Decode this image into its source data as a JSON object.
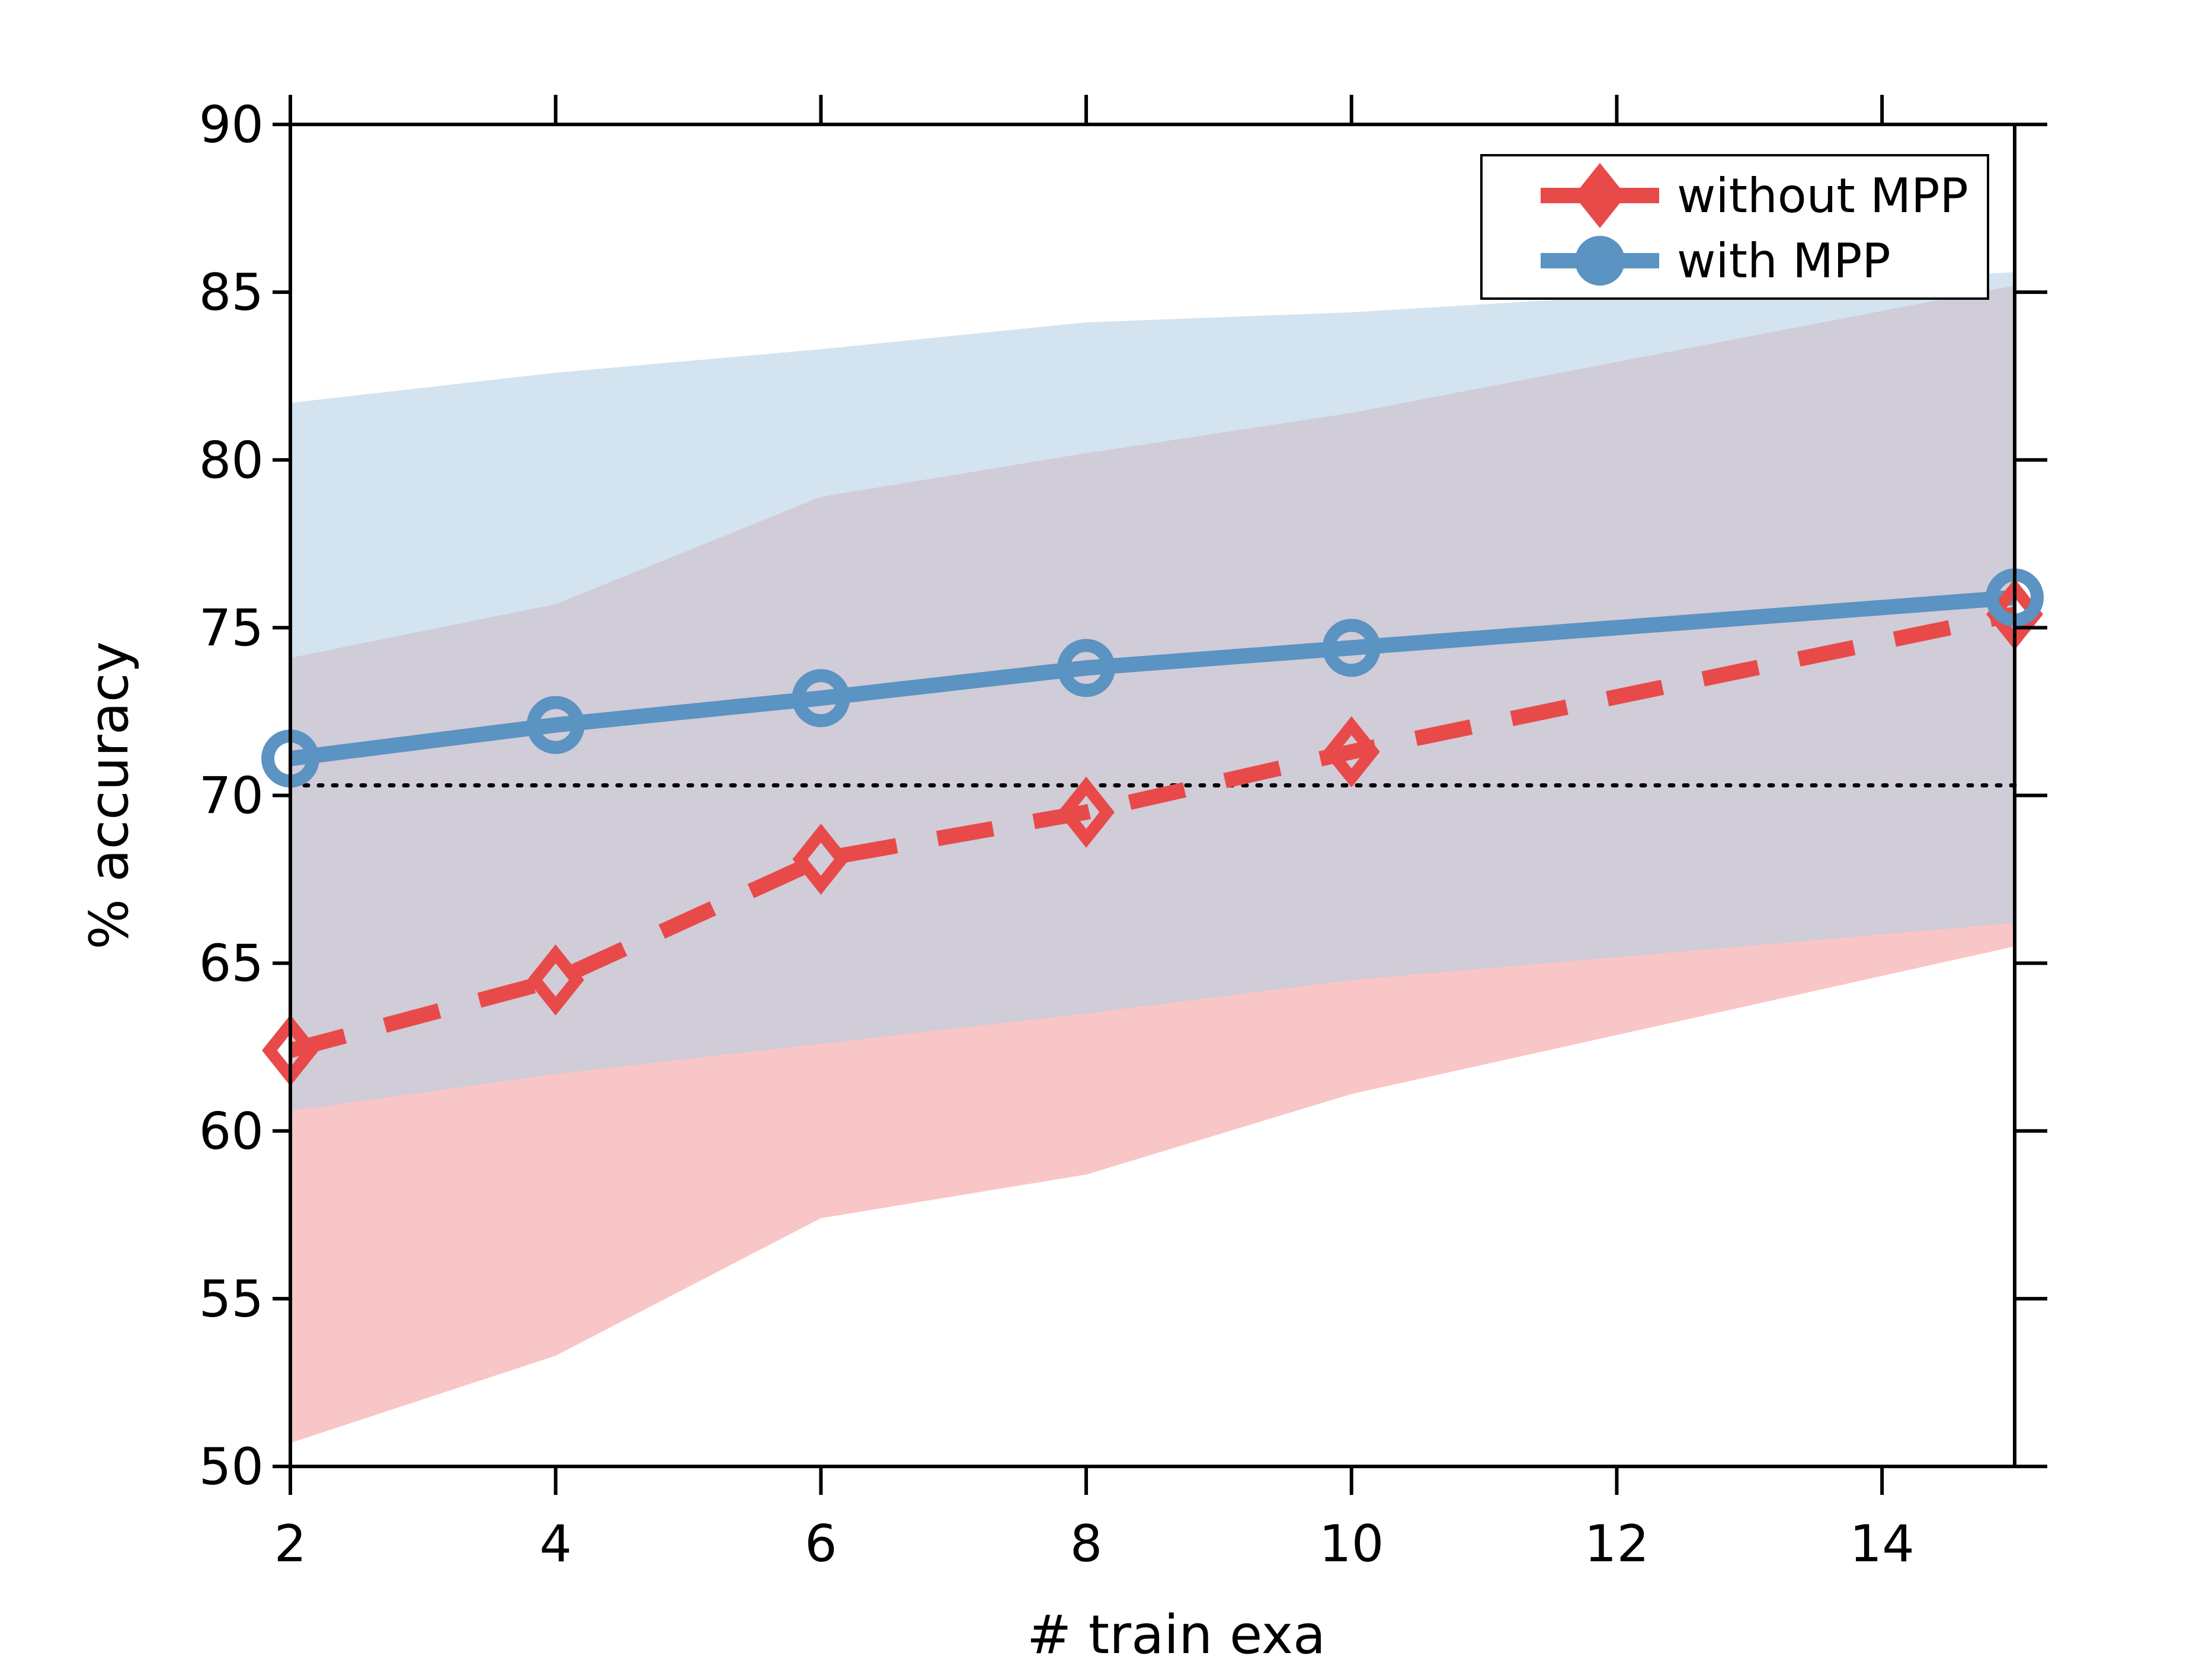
{
  "chart_data": {
    "type": "line",
    "title": "",
    "xlabel": "# train exa",
    "ylabel": "% accuracy",
    "xlim": [
      2,
      15
    ],
    "ylim": [
      50,
      90
    ],
    "xticks": [
      2,
      4,
      6,
      8,
      10,
      12,
      14
    ],
    "yticks": [
      50,
      55,
      60,
      65,
      70,
      75,
      80,
      85,
      90
    ],
    "legend_position": "top-right",
    "baseline": {
      "y": 70.3,
      "style": "dotted",
      "color": "#000000"
    },
    "x": [
      2,
      4,
      6,
      8,
      10,
      15
    ],
    "series": [
      {
        "name": "without MPP",
        "marker": "diamond",
        "line_style": "dashed",
        "color": "#e84a4a",
        "band_color": "#f4a7a7",
        "values": [
          62.4,
          64.5,
          68.1,
          69.5,
          71.3,
          75.4
        ],
        "band_lower": [
          50.7,
          53.3,
          57.4,
          58.7,
          61.1,
          65.5
        ],
        "band_upper": [
          74.1,
          75.7,
          78.9,
          80.2,
          81.4,
          85.2
        ]
      },
      {
        "name": "with MPP",
        "marker": "circle",
        "line_style": "solid",
        "color": "#5b93c2",
        "band_color": "#b5d1e5",
        "values": [
          71.1,
          72.1,
          72.9,
          73.8,
          74.4,
          75.9
        ],
        "band_lower": [
          60.6,
          61.7,
          62.6,
          63.5,
          64.5,
          66.2
        ],
        "band_upper": [
          81.7,
          82.6,
          83.3,
          84.1,
          84.4,
          85.6
        ]
      }
    ]
  }
}
